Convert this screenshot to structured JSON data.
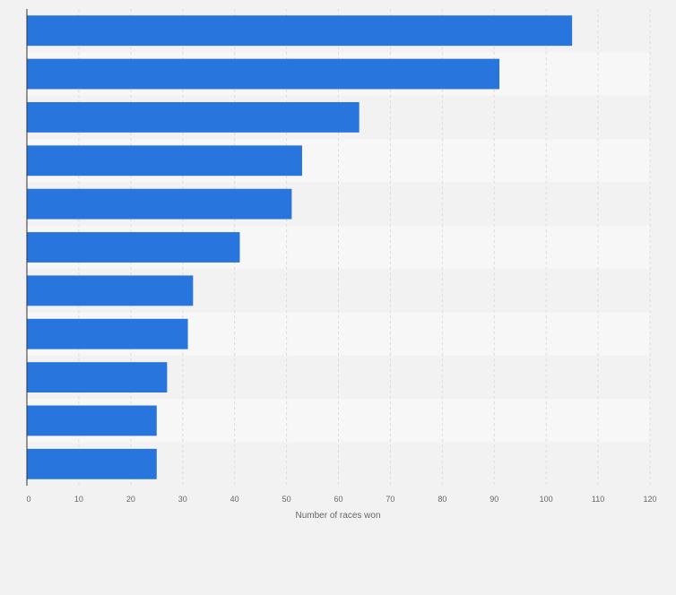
{
  "chart_data": {
    "type": "bar",
    "orientation": "horizontal",
    "categories": [
      "",
      "",
      "",
      "",
      "",
      "",
      "",
      "",
      "",
      "",
      ""
    ],
    "values": [
      105,
      91,
      64,
      53,
      51,
      41,
      32,
      31,
      27,
      25,
      25
    ],
    "title": "",
    "xlabel": "Number of races won",
    "ylabel": "",
    "xlim": [
      0,
      120
    ],
    "xticks": [
      0,
      10,
      20,
      30,
      40,
      50,
      60,
      70,
      80,
      90,
      100,
      110,
      120
    ],
    "grid": true,
    "colors": {
      "bar": "#2876dd",
      "band_dark": "#f2f2f2",
      "band_light": "#f7f7f7",
      "grid": "#dcdcdc",
      "axis": "#333333",
      "tick_text": "#666666"
    }
  }
}
